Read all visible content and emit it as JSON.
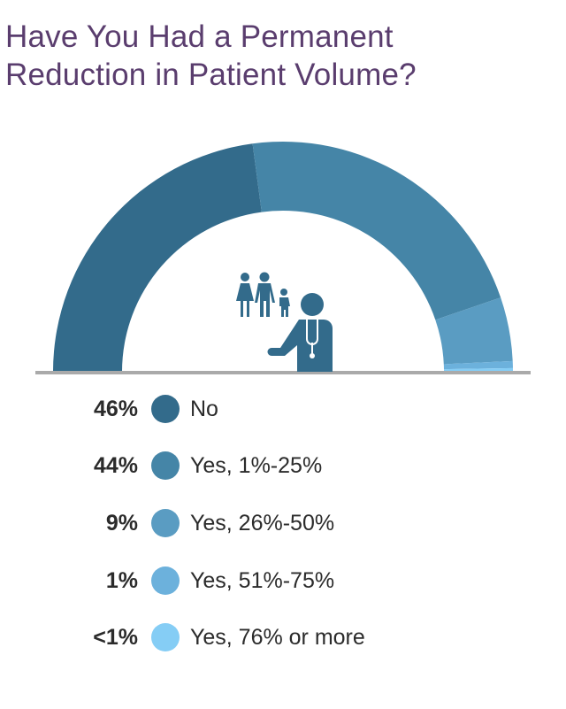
{
  "title": {
    "line1": "Have You Had a Permanent",
    "line2": "Reduction in Patient Volume?"
  },
  "colors": {
    "title": "#5a3d6e",
    "baseline": "#aaaaaa",
    "icon": "#336b8b"
  },
  "icon": {
    "name": "doctor-with-family-icon"
  },
  "legend": [
    {
      "pct": "46%",
      "label": "No",
      "color": "#336b8b"
    },
    {
      "pct": "44%",
      "label": "Yes, 1%-25%",
      "color": "#4585a7"
    },
    {
      "pct": "9%",
      "label": "Yes, 26%-50%",
      "color": "#5a9cc2"
    },
    {
      "pct": "1%",
      "label": "Yes, 51%-75%",
      "color": "#6cb1dc"
    },
    {
      "pct": "<1%",
      "label": "Yes, 76% or more",
      "color": "#85cdf5"
    }
  ],
  "chart_data": {
    "type": "pie",
    "subtype": "semi-donut",
    "title": "Have You Had a Permanent Reduction in Patient Volume?",
    "categories": [
      "No",
      "Yes, 1%-25%",
      "Yes, 26%-50%",
      "Yes, 51%-75%",
      "Yes, 76% or more"
    ],
    "values": [
      46,
      44,
      9,
      1,
      0.5
    ],
    "value_labels": [
      "46%",
      "44%",
      "9%",
      "1%",
      "<1%"
    ],
    "colors": [
      "#336b8b",
      "#4585a7",
      "#5a9cc2",
      "#6cb1dc",
      "#85cdf5"
    ],
    "legend_position": "bottom"
  }
}
